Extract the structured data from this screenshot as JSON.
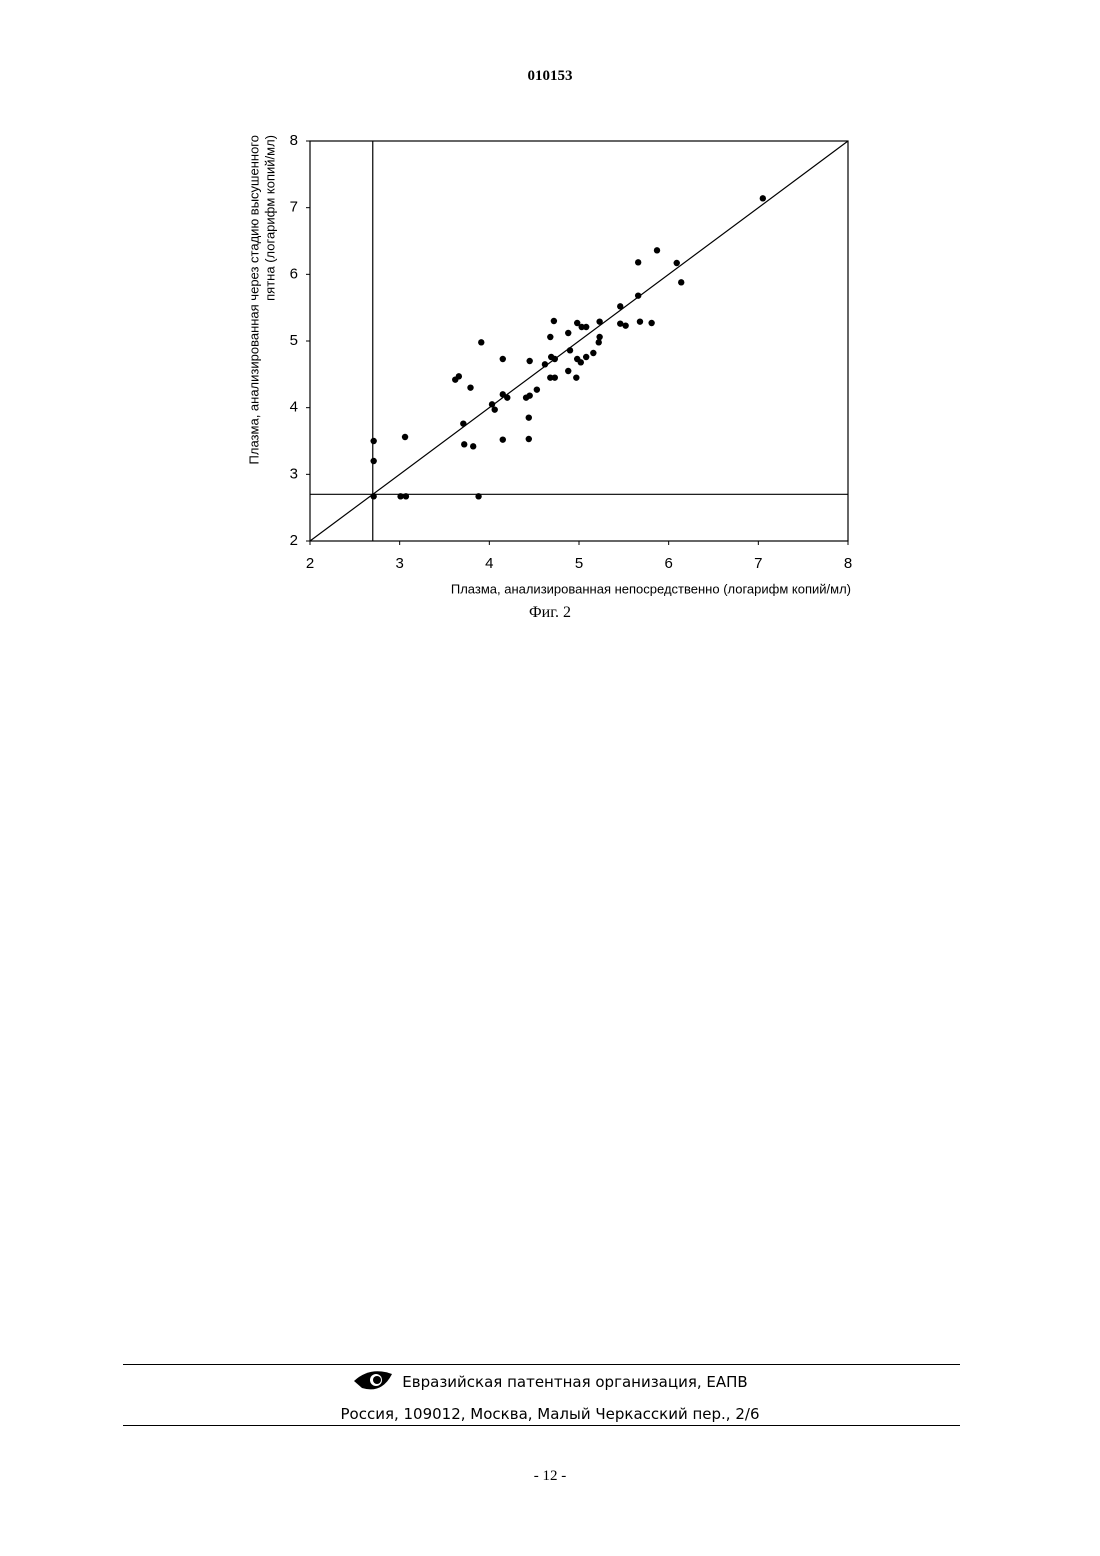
{
  "header": {
    "doc_number": "010153"
  },
  "chart_data": {
    "type": "scatter",
    "xlabel": "Плазма, анализированная непосредственно (логарифм копий/мл)",
    "ylabel": [
      "Плазма, анализированная через стадию высушенного",
      "пятна (логарифм копий/мл)"
    ],
    "xlim": [
      2,
      8
    ],
    "ylim": [
      2,
      8
    ],
    "xticks": [
      2,
      3,
      4,
      5,
      6,
      7,
      8
    ],
    "yticks": [
      2,
      3,
      4,
      5,
      6,
      7,
      8
    ],
    "vlines": [
      2.7
    ],
    "hlines": [
      2.7
    ],
    "identity_line": true,
    "color": "#000000",
    "x": [
      2.71,
      2.71,
      2.71,
      3.06,
      3.01,
      3.07,
      3.88,
      3.62,
      3.66,
      3.79,
      3.71,
      3.72,
      3.82,
      3.91,
      4.03,
      4.06,
      4.15,
      4.15,
      4.2,
      4.15,
      4.41,
      4.45,
      4.44,
      4.44,
      4.45,
      4.53,
      4.62,
      4.68,
      4.69,
      4.72,
      4.73,
      4.68,
      4.73,
      4.88,
      4.9,
      4.88,
      4.97,
      4.98,
      4.98,
      5.03,
      5.08,
      5.02,
      5.08,
      5.16,
      5.23,
      5.23,
      5.22,
      5.46,
      5.46,
      5.52,
      5.66,
      5.66,
      5.68,
      5.81,
      5.87,
      6.09,
      6.14,
      7.05
    ],
    "values": [
      3.5,
      3.2,
      2.67,
      3.56,
      2.67,
      2.67,
      2.67,
      4.42,
      4.47,
      4.3,
      3.76,
      3.45,
      3.42,
      4.98,
      4.05,
      3.97,
      4.73,
      4.2,
      4.15,
      3.52,
      4.15,
      4.18,
      3.85,
      3.53,
      4.7,
      4.27,
      4.65,
      5.06,
      4.76,
      5.3,
      4.73,
      4.45,
      4.45,
      5.12,
      4.86,
      4.55,
      4.45,
      5.27,
      4.73,
      5.21,
      5.21,
      4.68,
      4.76,
      4.82,
      5.29,
      5.06,
      4.98,
      5.52,
      5.26,
      5.23,
      6.18,
      5.68,
      5.29,
      5.27,
      6.36,
      6.17,
      5.88,
      7.14
    ]
  },
  "figure_caption": "Фиг. 2",
  "footer": {
    "organization": "Евразийская патентная организация, ЕАПВ",
    "address": "Россия, 109012, Москва, Малый Черкасский пер., 2/6"
  },
  "page_number": "- 12 -"
}
